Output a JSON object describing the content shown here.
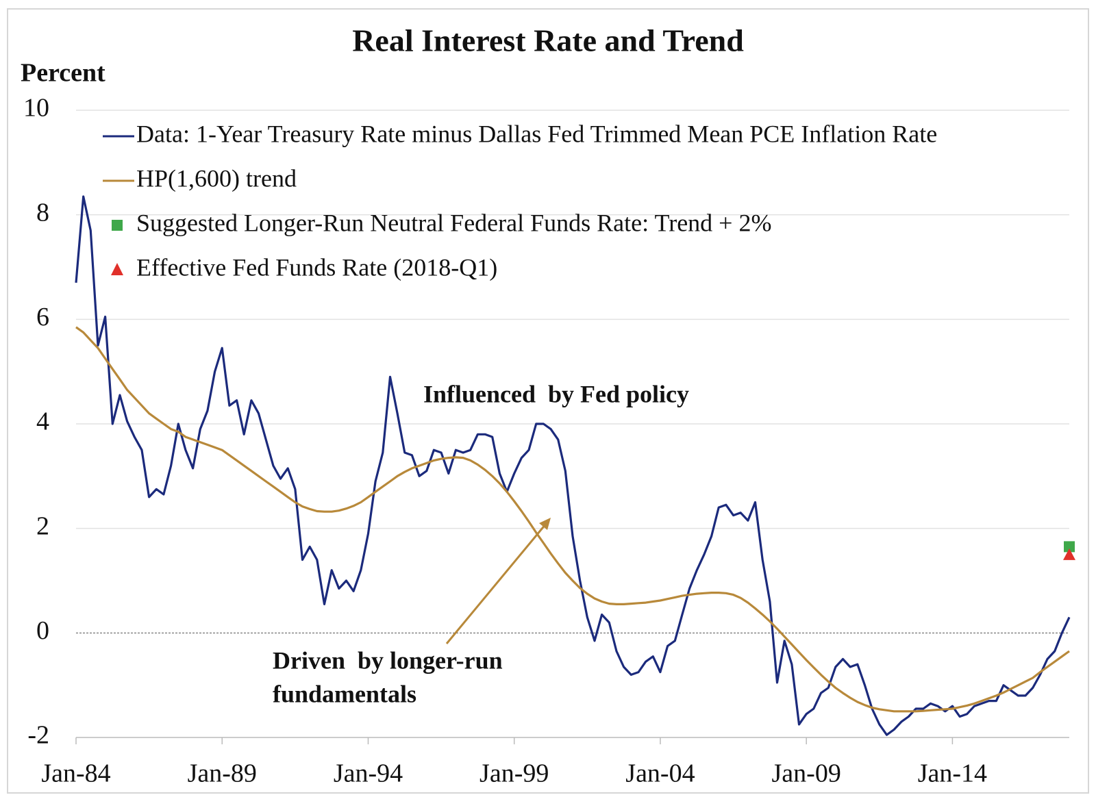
{
  "chart_data": {
    "type": "line",
    "title": "Real Interest Rate and Trend",
    "y_label": "Percent",
    "x": [
      "1984-01",
      "1984-04",
      "1984-07",
      "1984-10",
      "1985-01",
      "1985-04",
      "1985-07",
      "1985-10",
      "1986-01",
      "1986-04",
      "1986-07",
      "1986-10",
      "1987-01",
      "1987-04",
      "1987-07",
      "1987-10",
      "1988-01",
      "1988-04",
      "1988-07",
      "1988-10",
      "1989-01",
      "1989-04",
      "1989-07",
      "1989-10",
      "1990-01",
      "1990-04",
      "1990-07",
      "1990-10",
      "1991-01",
      "1991-04",
      "1991-07",
      "1991-10",
      "1992-01",
      "1992-04",
      "1992-07",
      "1992-10",
      "1993-01",
      "1993-04",
      "1993-07",
      "1993-10",
      "1994-01",
      "1994-04",
      "1994-07",
      "1994-10",
      "1995-01",
      "1995-04",
      "1995-07",
      "1995-10",
      "1996-01",
      "1996-04",
      "1996-07",
      "1996-10",
      "1997-01",
      "1997-04",
      "1997-07",
      "1997-10",
      "1998-01",
      "1998-04",
      "1998-07",
      "1998-10",
      "1999-01",
      "1999-04",
      "1999-07",
      "1999-10",
      "2000-01",
      "2000-04",
      "2000-07",
      "2000-10",
      "2001-01",
      "2001-04",
      "2001-07",
      "2001-10",
      "2002-01",
      "2002-04",
      "2002-07",
      "2002-10",
      "2003-01",
      "2003-04",
      "2003-07",
      "2003-10",
      "2004-01",
      "2004-04",
      "2004-07",
      "2004-10",
      "2005-01",
      "2005-04",
      "2005-07",
      "2005-10",
      "2006-01",
      "2006-04",
      "2006-07",
      "2006-10",
      "2007-01",
      "2007-04",
      "2007-07",
      "2007-10",
      "2008-01",
      "2008-04",
      "2008-07",
      "2008-10",
      "2009-01",
      "2009-04",
      "2009-07",
      "2009-10",
      "2010-01",
      "2010-04",
      "2010-07",
      "2010-10",
      "2011-01",
      "2011-04",
      "2011-07",
      "2011-10",
      "2012-01",
      "2012-04",
      "2012-07",
      "2012-10",
      "2013-01",
      "2013-04",
      "2013-07",
      "2013-10",
      "2014-01",
      "2014-04",
      "2014-07",
      "2014-10",
      "2015-01",
      "2015-04",
      "2015-07",
      "2015-10",
      "2016-01",
      "2016-04",
      "2016-07",
      "2016-10",
      "2017-01",
      "2017-04",
      "2017-07",
      "2017-10",
      "2018-01"
    ],
    "series": [
      {
        "name": "Data: 1-Year Treasury Rate minus Dallas Fed Trimmed Mean PCE Inflation Rate",
        "color": "#1b2a7c",
        "marker": "line",
        "values": [
          6.7,
          8.35,
          7.7,
          5.5,
          6.05,
          4.0,
          4.55,
          4.05,
          3.75,
          3.5,
          2.6,
          2.75,
          2.65,
          3.2,
          4.0,
          3.5,
          3.15,
          3.9,
          4.25,
          5.0,
          5.45,
          4.35,
          4.45,
          3.8,
          4.45,
          4.2,
          3.7,
          3.2,
          2.95,
          3.15,
          2.75,
          1.4,
          1.65,
          1.4,
          0.55,
          1.2,
          0.85,
          1.0,
          0.8,
          1.2,
          1.9,
          2.9,
          3.45,
          4.9,
          4.2,
          3.45,
          3.4,
          3.0,
          3.1,
          3.5,
          3.45,
          3.05,
          3.5,
          3.45,
          3.5,
          3.8,
          3.8,
          3.75,
          3.05,
          2.7,
          3.05,
          3.35,
          3.5,
          4.0,
          4.0,
          3.9,
          3.7,
          3.1,
          1.85,
          1.0,
          0.3,
          -0.15,
          0.35,
          0.2,
          -0.35,
          -0.65,
          -0.8,
          -0.75,
          -0.55,
          -0.45,
          -0.75,
          -0.25,
          -0.15,
          0.35,
          0.85,
          1.2,
          1.5,
          1.85,
          2.4,
          2.45,
          2.25,
          2.3,
          2.15,
          2.5,
          1.4,
          0.6,
          -0.95,
          -0.15,
          -0.6,
          -1.75,
          -1.55,
          -1.45,
          -1.15,
          -1.05,
          -0.65,
          -0.5,
          -0.65,
          -0.6,
          -1.0,
          -1.45,
          -1.75,
          -1.95,
          -1.85,
          -1.7,
          -1.6,
          -1.45,
          -1.45,
          -1.35,
          -1.4,
          -1.5,
          -1.4,
          -1.6,
          -1.55,
          -1.4,
          -1.35,
          -1.3,
          -1.3,
          -1.0,
          -1.1,
          -1.2,
          -1.2,
          -1.05,
          -0.8,
          -0.5,
          -0.35,
          0.0,
          0.3
        ]
      },
      {
        "name": "HP(1,600) trend",
        "color": "#b8893a",
        "marker": "line",
        "values": [
          5.85,
          5.75,
          5.6,
          5.45,
          5.25,
          5.05,
          4.85,
          4.65,
          4.5,
          4.35,
          4.2,
          4.1,
          4.0,
          3.9,
          3.85,
          3.75,
          3.7,
          3.65,
          3.6,
          3.55,
          3.5,
          3.4,
          3.3,
          3.2,
          3.1,
          3.0,
          2.9,
          2.8,
          2.7,
          2.6,
          2.5,
          2.42,
          2.37,
          2.33,
          2.32,
          2.32,
          2.34,
          2.38,
          2.43,
          2.5,
          2.6,
          2.7,
          2.8,
          2.9,
          3.0,
          3.08,
          3.15,
          3.2,
          3.25,
          3.3,
          3.33,
          3.35,
          3.36,
          3.35,
          3.3,
          3.22,
          3.12,
          3.0,
          2.86,
          2.7,
          2.52,
          2.33,
          2.13,
          1.92,
          1.72,
          1.52,
          1.33,
          1.15,
          1.0,
          0.86,
          0.75,
          0.66,
          0.6,
          0.56,
          0.55,
          0.55,
          0.56,
          0.57,
          0.58,
          0.6,
          0.62,
          0.65,
          0.68,
          0.71,
          0.73,
          0.75,
          0.76,
          0.77,
          0.77,
          0.76,
          0.73,
          0.67,
          0.58,
          0.47,
          0.35,
          0.22,
          0.08,
          -0.07,
          -0.22,
          -0.37,
          -0.52,
          -0.66,
          -0.8,
          -0.93,
          -1.05,
          -1.15,
          -1.24,
          -1.32,
          -1.38,
          -1.43,
          -1.46,
          -1.48,
          -1.5,
          -1.5,
          -1.5,
          -1.5,
          -1.49,
          -1.48,
          -1.47,
          -1.46,
          -1.45,
          -1.42,
          -1.39,
          -1.35,
          -1.3,
          -1.25,
          -1.2,
          -1.14,
          -1.07,
          -1.0,
          -0.93,
          -0.86,
          -0.75,
          -0.65,
          -0.55,
          -0.45,
          -0.35
        ]
      },
      {
        "name": "Suggested Longer-Run Neutral Federal Funds Rate: Trend + 2%",
        "color": "#3fa84a",
        "marker": "square",
        "x": [
          "2018-01"
        ],
        "values": [
          1.65
        ]
      },
      {
        "name": "Effective Fed Funds Rate (2018-Q1)",
        "color": "#e0302a",
        "marker": "triangle",
        "x": [
          "2018-01"
        ],
        "values": [
          1.5
        ]
      }
    ],
    "xlim": [
      "1984-01",
      "2018-01"
    ],
    "xticks": [
      {
        "value": "1984-01",
        "label": "Jan-84"
      },
      {
        "value": "1989-01",
        "label": "Jan-89"
      },
      {
        "value": "1994-01",
        "label": "Jan-94"
      },
      {
        "value": "1999-01",
        "label": "Jan-99"
      },
      {
        "value": "2004-01",
        "label": "Jan-04"
      },
      {
        "value": "2009-01",
        "label": "Jan-09"
      },
      {
        "value": "2014-01",
        "label": "Jan-14"
      }
    ],
    "ylim": [
      -2,
      10
    ],
    "yticks": [
      -2,
      0,
      2,
      4,
      6,
      8,
      10
    ],
    "grid": true,
    "legend": "upper left",
    "annotations": [
      {
        "lines": [
          "Influenced  by Fed policy"
        ],
        "color": "#1b2a7c"
      },
      {
        "lines": [
          "Driven  by longer-run",
          "fundamentals"
        ],
        "color": "#b8893a"
      }
    ]
  }
}
